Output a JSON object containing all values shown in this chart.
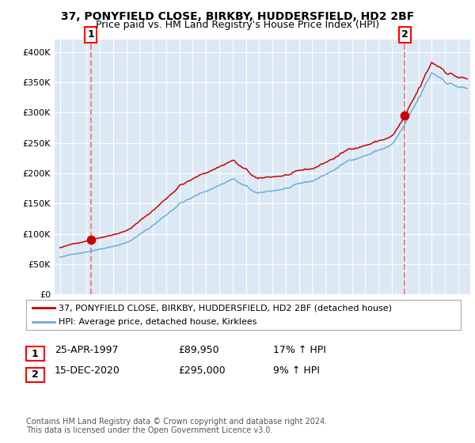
{
  "title_line1": "37, PONYFIELD CLOSE, BIRKBY, HUDDERSFIELD, HD2 2BF",
  "title_line2": "Price paid vs. HM Land Registry's House Price Index (HPI)",
  "legend_line1": "37, PONYFIELD CLOSE, BIRKBY, HUDDERSFIELD, HD2 2BF (detached house)",
  "legend_line2": "HPI: Average price, detached house, Kirklees",
  "transaction1_label": "1",
  "transaction1_date": "25-APR-1997",
  "transaction1_price": "£89,950",
  "transaction1_hpi": "17% ↑ HPI",
  "transaction2_label": "2",
  "transaction2_date": "15-DEC-2020",
  "transaction2_price": "£295,000",
  "transaction2_hpi": "9% ↑ HPI",
  "footer": "Contains HM Land Registry data © Crown copyright and database right 2024.\nThis data is licensed under the Open Government Licence v3.0.",
  "hpi_color": "#6baed6",
  "price_color": "#cc0000",
  "vline_color": "#f08080",
  "dot_color": "#cc0000",
  "background_plot": "#dce9f5",
  "background_fig": "#ffffff",
  "ylim": [
    0,
    420000
  ],
  "yticks": [
    0,
    50000,
    100000,
    150000,
    200000,
    250000,
    300000,
    350000,
    400000
  ],
  "marker1_x": 1997.32,
  "marker1_y": 89950,
  "marker2_x": 2020.96,
  "marker2_y": 295000,
  "xmin": 1994.6,
  "xmax": 2025.9
}
